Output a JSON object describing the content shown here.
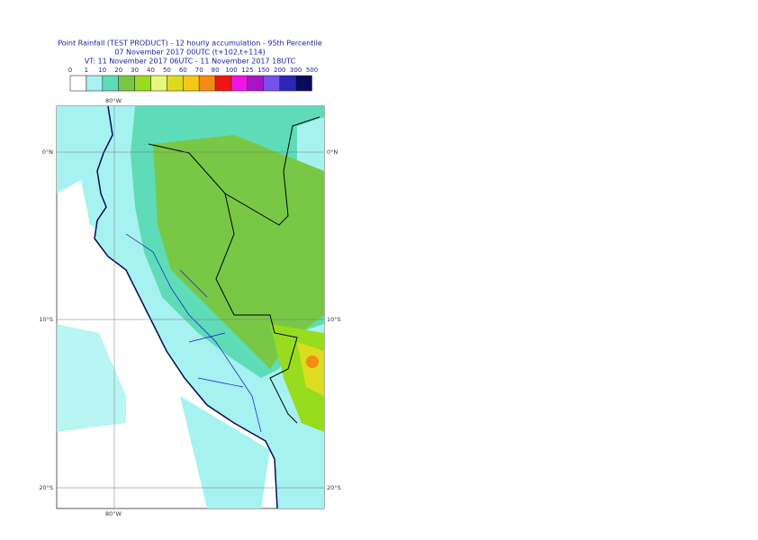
{
  "header": {
    "title": "Point Rainfall (TEST PRODUCT) - 12 hourly accumulation - 95th Percentile",
    "run": "07 November 2017 00UTC (t+102,t+114)",
    "valid": "VT: 11 November 2017 06UTC - 11 November 2017 18UTC"
  },
  "legend": {
    "labels": [
      "0",
      "1",
      "10",
      "20",
      "30",
      "40",
      "50",
      "60",
      "70",
      "80",
      "100",
      "125",
      "150",
      "200",
      "300",
      "500"
    ],
    "colors": [
      "#ffffff",
      "#a6f2f0",
      "#5edcb8",
      "#78c846",
      "#98dc1e",
      "#e6f878",
      "#dcdc1e",
      "#f5c814",
      "#f58c14",
      "#f01414",
      "#f014e6",
      "#aa14c8",
      "#7850ee",
      "#2828b4",
      "#0a0a5a"
    ]
  },
  "grid": {
    "lon": "80°W",
    "lat": [
      "0°N",
      "10°S",
      "20°S"
    ]
  }
}
